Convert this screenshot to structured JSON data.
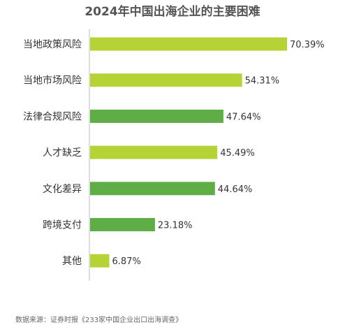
{
  "chart_data": {
    "type": "bar",
    "orientation": "horizontal",
    "title": "2024年中国出海企业的主要困难",
    "categories": [
      "当地政策风险",
      "当地市场风险",
      "法律合规风险",
      "人才缺乏",
      "文化差异",
      "跨境支付",
      "其他"
    ],
    "values": [
      70.39,
      54.31,
      47.64,
      45.49,
      44.64,
      23.18,
      6.87
    ],
    "value_labels": [
      "70.39%",
      "54.31%",
      "47.64%",
      "45.49%",
      "44.64%",
      "23.18%",
      "6.87%"
    ],
    "bar_colors": [
      "#b5d335",
      "#b5d335",
      "#5fad46",
      "#b5d335",
      "#5fad46",
      "#5fad46",
      "#b5d335"
    ],
    "xlim": [
      0,
      70.39
    ],
    "grid": false,
    "legend": "none"
  },
  "source": "数据来源：证券时报《233家中国企业出口出海调查》"
}
